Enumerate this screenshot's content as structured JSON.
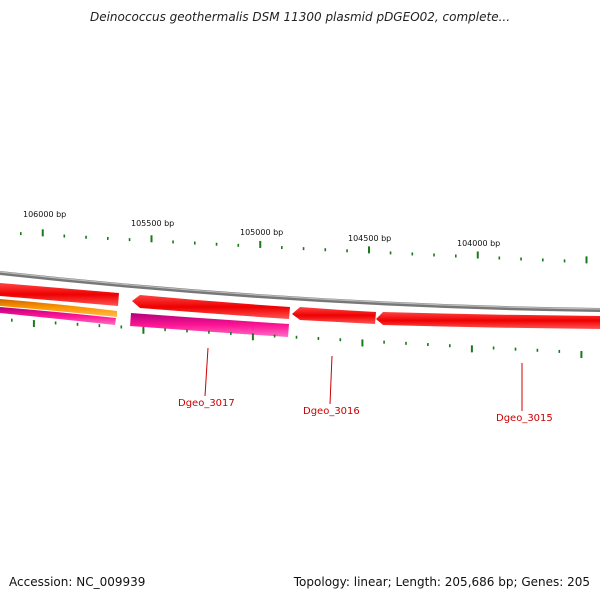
{
  "header": {
    "title": "Deinococcus geothermalis DSM 11300 plasmid pDGEO02, complete..."
  },
  "footer": {
    "accession": "Accession: NC_009939",
    "summary": "Topology: linear; Length: 205,686 bp; Genes: 205"
  },
  "ruler": {
    "labels": [
      "106000 bp",
      "105500 bp",
      "105000 bp",
      "104500 bp",
      "104000 bp"
    ]
  },
  "genes": [
    {
      "label": "Dgeo_3017"
    },
    {
      "label": "Dgeo_3016"
    },
    {
      "label": "Dgeo_3015"
    }
  ],
  "colors": {
    "backbone": "#8a8a8a",
    "forward_gene": "#ff0000",
    "reverse_gene": "#ff1493",
    "orange_feature": "#ff9900",
    "tick": "#1a7a1a",
    "label_line": "#cc0000"
  }
}
